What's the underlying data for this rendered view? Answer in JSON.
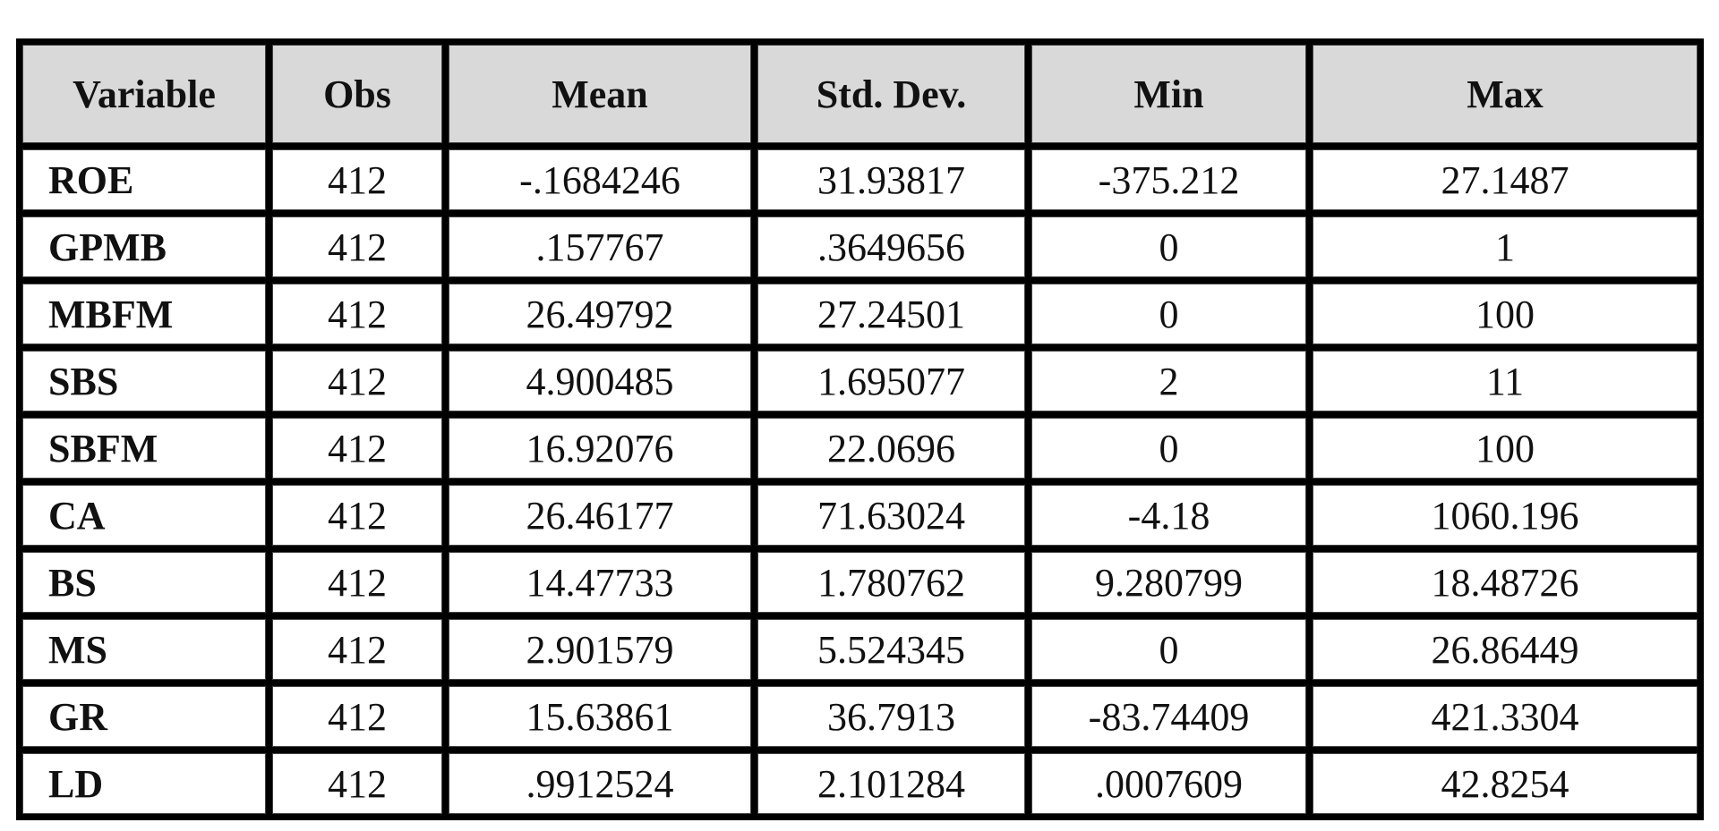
{
  "table": {
    "header": [
      "Variable",
      "Obs",
      "Mean",
      "Std. Dev.",
      "Min",
      "Max"
    ],
    "rows": [
      [
        "ROE",
        "412",
        "-.1684246",
        "31.93817",
        "-375.212",
        "27.1487"
      ],
      [
        "GPMB",
        "412",
        ".157767",
        ".3649656",
        "0",
        "1"
      ],
      [
        "MBFM",
        "412",
        "26.49792",
        "27.24501",
        "0",
        "100"
      ],
      [
        "SBS",
        "412",
        "4.900485",
        "1.695077",
        "2",
        "11"
      ],
      [
        "SBFM",
        "412",
        "16.92076",
        "22.0696",
        "0",
        "100"
      ],
      [
        "CA",
        "412",
        "26.46177",
        "71.63024",
        "-4.18",
        "1060.196"
      ],
      [
        "BS",
        "412",
        "14.47733",
        "1.780762",
        "9.280799",
        "18.48726"
      ],
      [
        "MS",
        "412",
        "2.901579",
        "5.524345",
        "0",
        "26.86449"
      ],
      [
        "GR",
        "412",
        "15.63861",
        "36.7913",
        "-83.74409",
        "421.3304"
      ],
      [
        "LD",
        "412",
        ".9912524",
        "2.101284",
        ".0007609",
        "42.8254"
      ]
    ]
  }
}
